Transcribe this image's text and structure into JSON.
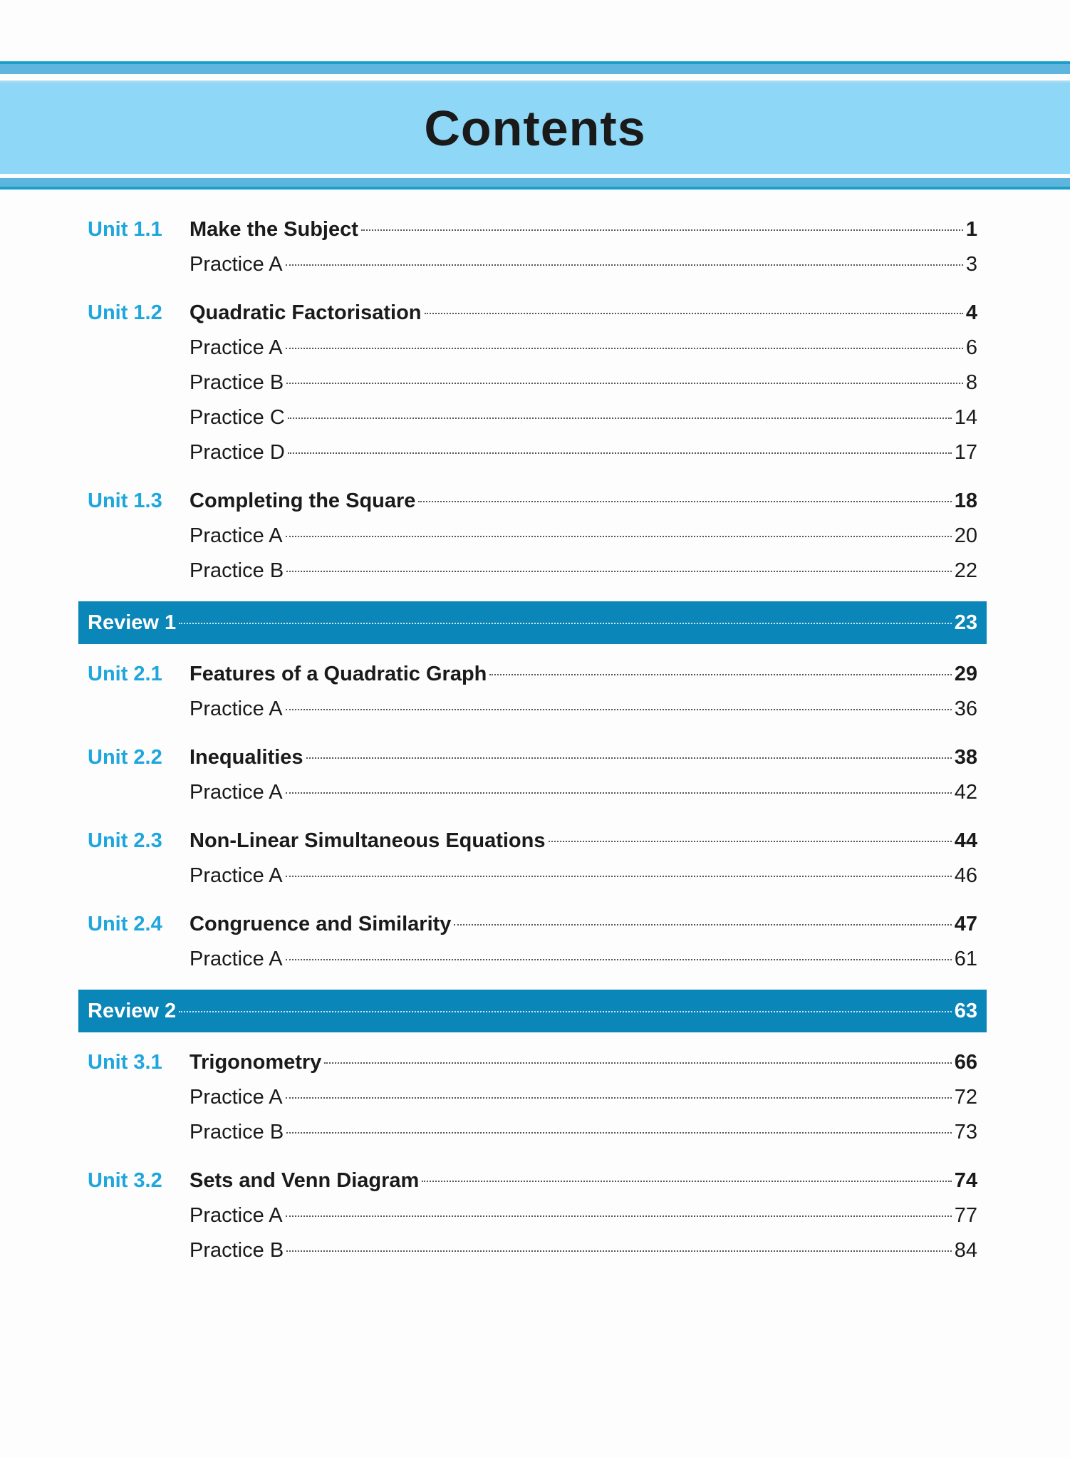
{
  "title": "Contents",
  "colors": {
    "accent": "#1ea6dd",
    "review_band": "#0a86b8",
    "header_band": "#8fd7f6"
  },
  "entries": [
    {
      "type": "unit",
      "label": "Unit 1.1",
      "title": "Make the Subject",
      "page": "1"
    },
    {
      "type": "practice",
      "title": "Practice A",
      "page": "3"
    },
    {
      "type": "unit",
      "label": "Unit 1.2",
      "title": "Quadratic Factorisation",
      "page": "4"
    },
    {
      "type": "practice",
      "title": "Practice A",
      "page": "6"
    },
    {
      "type": "practice",
      "title": "Practice B",
      "page": "8"
    },
    {
      "type": "practice",
      "title": "Practice C",
      "page": "14"
    },
    {
      "type": "practice",
      "title": "Practice D",
      "page": "17"
    },
    {
      "type": "unit",
      "label": "Unit 1.3",
      "title": "Completing the Square",
      "page": "18"
    },
    {
      "type": "practice",
      "title": "Practice A",
      "page": "20"
    },
    {
      "type": "practice",
      "title": "Practice B",
      "page": "22"
    },
    {
      "type": "review",
      "title": "Review 1",
      "page": "23"
    },
    {
      "type": "unit",
      "label": "Unit 2.1",
      "title": "Features of a Quadratic Graph",
      "page": "29"
    },
    {
      "type": "practice",
      "title": "Practice A",
      "page": "36"
    },
    {
      "type": "unit",
      "label": "Unit 2.2",
      "title": "Inequalities",
      "page": "38"
    },
    {
      "type": "practice",
      "title": "Practice A",
      "page": "42"
    },
    {
      "type": "unit",
      "label": "Unit 2.3",
      "title": "Non-Linear Simultaneous Equations",
      "page": "44"
    },
    {
      "type": "practice",
      "title": "Practice A",
      "page": "46"
    },
    {
      "type": "unit",
      "label": "Unit 2.4",
      "title": "Congruence and Similarity",
      "page": "47"
    },
    {
      "type": "practice",
      "title": "Practice A",
      "page": "61"
    },
    {
      "type": "review",
      "title": "Review 2",
      "page": "63"
    },
    {
      "type": "unit",
      "label": "Unit 3.1",
      "title": "Trigonometry",
      "page": "66"
    },
    {
      "type": "practice",
      "title": "Practice A",
      "page": "72"
    },
    {
      "type": "practice",
      "title": "Practice B",
      "page": "73"
    },
    {
      "type": "unit",
      "label": "Unit 3.2",
      "title": "Sets and Venn Diagram",
      "page": "74"
    },
    {
      "type": "practice",
      "title": "Practice A",
      "page": "77"
    },
    {
      "type": "practice",
      "title": "Practice B",
      "page": "84"
    }
  ]
}
